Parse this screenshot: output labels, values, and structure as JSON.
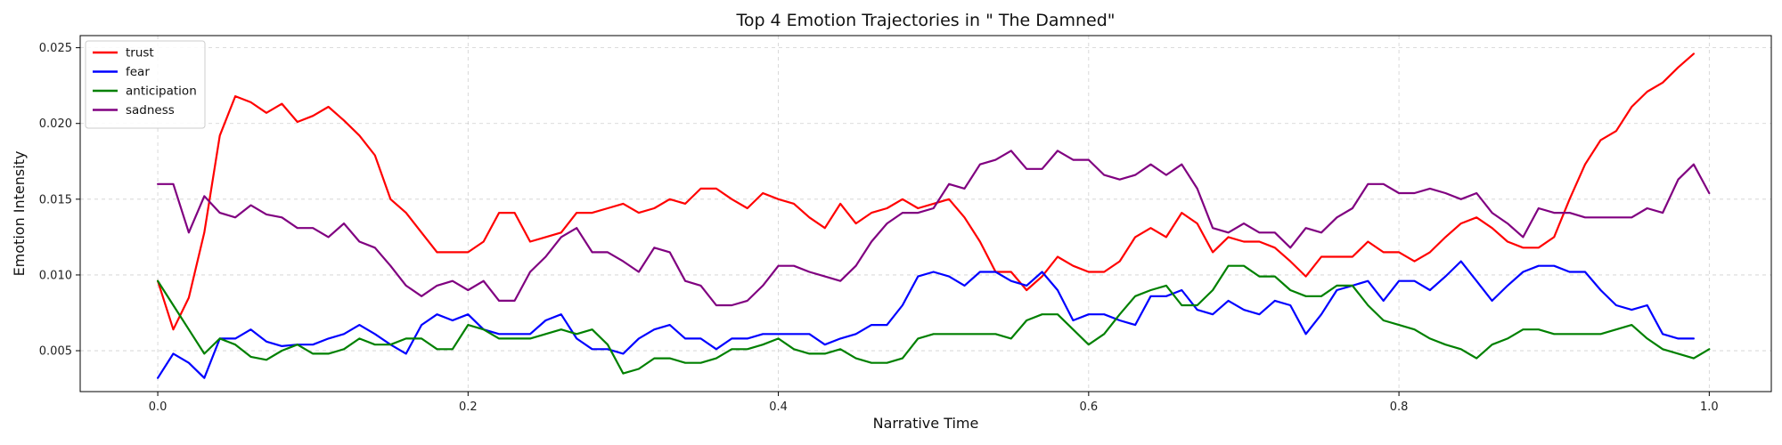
{
  "chart_data": {
    "type": "line",
    "title": "Top 4 Emotion Trajectories in \" The Damned\"",
    "xlabel": "Narrative Time",
    "ylabel": "Emotion Intensity",
    "xlim": [
      -0.05,
      1.04
    ],
    "ylim": [
      0.0023,
      0.0258
    ],
    "x_ticks": [
      0.0,
      0.2,
      0.4,
      0.6,
      0.8,
      1.0
    ],
    "x_tick_labels": [
      "0.0",
      "0.2",
      "0.4",
      "0.6",
      "0.8",
      "1.0"
    ],
    "y_ticks": [
      0.005,
      0.01,
      0.015,
      0.02,
      0.025
    ],
    "y_tick_labels": [
      "0.005",
      "0.010",
      "0.015",
      "0.020",
      "0.025"
    ],
    "grid": true,
    "legend_position": "top-left",
    "x_start": 0.0,
    "x_step": 0.01,
    "series": [
      {
        "name": "trust",
        "color": "#ff0000",
        "values": [
          0.0096,
          0.0064,
          0.0085,
          0.0128,
          0.0192,
          0.0218,
          0.0214,
          0.0207,
          0.0213,
          0.0201,
          0.0205,
          0.0211,
          0.0202,
          0.0192,
          0.0179,
          0.015,
          0.0141,
          0.0128,
          0.0115,
          0.0115,
          0.0115,
          0.0122,
          0.0141,
          0.0141,
          0.0122,
          0.0125,
          0.0128,
          0.0141,
          0.0141,
          0.0144,
          0.0147,
          0.0141,
          0.0144,
          0.015,
          0.0147,
          0.0157,
          0.0157,
          0.015,
          0.0144,
          0.0154,
          0.015,
          0.0147,
          0.0138,
          0.0131,
          0.0147,
          0.0134,
          0.0141,
          0.0144,
          0.015,
          0.0144,
          0.0147,
          0.015,
          0.0138,
          0.0122,
          0.0102,
          0.0102,
          0.009,
          0.0099,
          0.0112,
          0.0106,
          0.0102,
          0.0102,
          0.0109,
          0.0125,
          0.0131,
          0.0125,
          0.0141,
          0.0134,
          0.0115,
          0.0125,
          0.0122,
          0.0122,
          0.0118,
          0.0109,
          0.0099,
          0.0112,
          0.0112,
          0.0112,
          0.0122,
          0.0115,
          0.0115,
          0.0109,
          0.0115,
          0.0125,
          0.0134,
          0.0138,
          0.0131,
          0.0122,
          0.0118,
          0.0118,
          0.0125,
          0.015,
          0.0173,
          0.0189,
          0.0195,
          0.0211,
          0.0221,
          0.0227,
          0.0237,
          0.0246
        ]
      },
      {
        "name": "fear",
        "color": "#0000ff",
        "values": [
          0.0032,
          0.0048,
          0.0042,
          0.0032,
          0.0058,
          0.0058,
          0.0064,
          0.0056,
          0.0053,
          0.0054,
          0.0054,
          0.0058,
          0.0061,
          0.0067,
          0.0061,
          0.0054,
          0.0048,
          0.0067,
          0.0074,
          0.007,
          0.0074,
          0.0064,
          0.0061,
          0.0061,
          0.0061,
          0.007,
          0.0074,
          0.0058,
          0.0051,
          0.0051,
          0.0048,
          0.0058,
          0.0064,
          0.0067,
          0.0058,
          0.0058,
          0.0051,
          0.0058,
          0.0058,
          0.0061,
          0.0061,
          0.0061,
          0.0061,
          0.0054,
          0.0058,
          0.0061,
          0.0067,
          0.0067,
          0.008,
          0.0099,
          0.0102,
          0.0099,
          0.0093,
          0.0102,
          0.0102,
          0.0096,
          0.0093,
          0.0102,
          0.009,
          0.007,
          0.0074,
          0.0074,
          0.007,
          0.0067,
          0.0086,
          0.0086,
          0.009,
          0.0077,
          0.0074,
          0.0083,
          0.0077,
          0.0074,
          0.0083,
          0.008,
          0.0061,
          0.0074,
          0.009,
          0.0093,
          0.0096,
          0.0083,
          0.0096,
          0.0096,
          0.009,
          0.0099,
          0.0109,
          0.0096,
          0.0083,
          0.0093,
          0.0102,
          0.0106,
          0.0106,
          0.0102,
          0.0102,
          0.009,
          0.008,
          0.0077,
          0.008,
          0.0061,
          0.0058,
          0.0058
        ]
      },
      {
        "name": "anticipation",
        "color": "#008000",
        "values": [
          0.0096,
          0.008,
          0.0064,
          0.0048,
          0.0058,
          0.0054,
          0.0046,
          0.0044,
          0.005,
          0.0054,
          0.0048,
          0.0048,
          0.0051,
          0.0058,
          0.0054,
          0.0054,
          0.0058,
          0.0058,
          0.0051,
          0.0051,
          0.0067,
          0.0064,
          0.0058,
          0.0058,
          0.0058,
          0.0061,
          0.0064,
          0.0061,
          0.0064,
          0.0054,
          0.0035,
          0.0038,
          0.0045,
          0.0045,
          0.0042,
          0.0042,
          0.0045,
          0.0051,
          0.0051,
          0.0054,
          0.0058,
          0.0051,
          0.0048,
          0.0048,
          0.0051,
          0.0045,
          0.0042,
          0.0042,
          0.0045,
          0.0058,
          0.0061,
          0.0061,
          0.0061,
          0.0061,
          0.0061,
          0.0058,
          0.007,
          0.0074,
          0.0074,
          0.0064,
          0.0054,
          0.0061,
          0.0074,
          0.0086,
          0.009,
          0.0093,
          0.008,
          0.008,
          0.009,
          0.0106,
          0.0106,
          0.0099,
          0.0099,
          0.009,
          0.0086,
          0.0086,
          0.0093,
          0.0093,
          0.008,
          0.007,
          0.0067,
          0.0064,
          0.0058,
          0.0054,
          0.0051,
          0.0045,
          0.0054,
          0.0058,
          0.0064,
          0.0064,
          0.0061,
          0.0061,
          0.0061,
          0.0061,
          0.0064,
          0.0067,
          0.0058,
          0.0051,
          0.0048,
          0.0045,
          0.0051
        ]
      },
      {
        "name": "sadness",
        "color": "#800080",
        "values": [
          0.016,
          0.016,
          0.0128,
          0.0152,
          0.0141,
          0.0138,
          0.0146,
          0.014,
          0.0138,
          0.0131,
          0.0131,
          0.0125,
          0.0134,
          0.0122,
          0.0118,
          0.0106,
          0.0093,
          0.0086,
          0.0093,
          0.0096,
          0.009,
          0.0096,
          0.0083,
          0.0083,
          0.0102,
          0.0112,
          0.0125,
          0.0131,
          0.0115,
          0.0115,
          0.0109,
          0.0102,
          0.0118,
          0.0115,
          0.0096,
          0.0093,
          0.008,
          0.008,
          0.0083,
          0.0093,
          0.0106,
          0.0106,
          0.0102,
          0.0099,
          0.0096,
          0.0106,
          0.0122,
          0.0134,
          0.0141,
          0.0141,
          0.0144,
          0.016,
          0.0157,
          0.0173,
          0.0176,
          0.0182,
          0.017,
          0.017,
          0.0182,
          0.0176,
          0.0176,
          0.0166,
          0.0163,
          0.0166,
          0.0173,
          0.0166,
          0.0173,
          0.0157,
          0.0131,
          0.0128,
          0.0134,
          0.0128,
          0.0128,
          0.0118,
          0.0131,
          0.0128,
          0.0138,
          0.0144,
          0.016,
          0.016,
          0.0154,
          0.0154,
          0.0157,
          0.0154,
          0.015,
          0.0154,
          0.0141,
          0.0134,
          0.0125,
          0.0144,
          0.0141,
          0.0141,
          0.0138,
          0.0138,
          0.0138,
          0.0138,
          0.0144,
          0.0141,
          0.0163,
          0.0173,
          0.0154
        ]
      }
    ]
  }
}
